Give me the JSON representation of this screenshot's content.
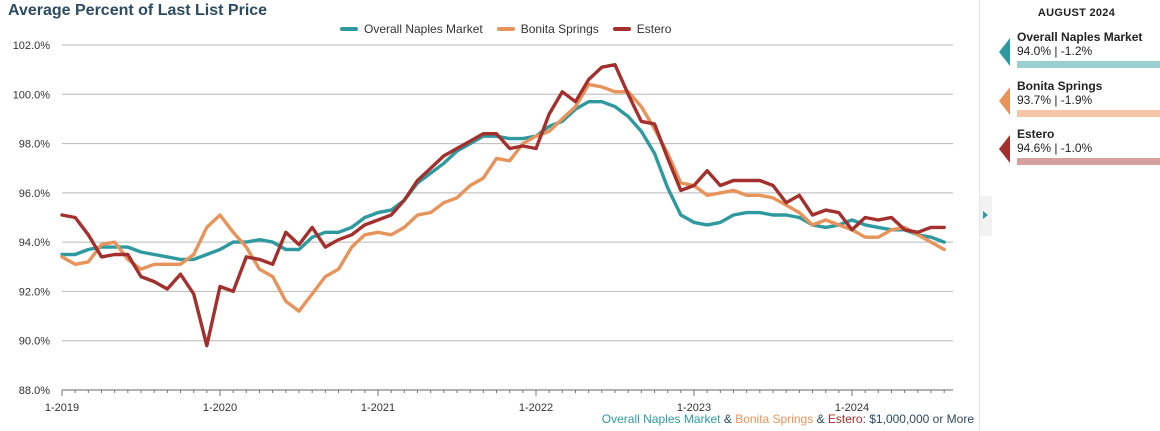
{
  "title": "Average Percent of Last List Price",
  "legend": [
    {
      "name": "Overall Naples Market",
      "color": "#2e9aa0"
    },
    {
      "name": "Bonita Springs",
      "color": "#e8935a"
    },
    {
      "name": "Estero",
      "color": "#a3302d"
    }
  ],
  "footnote": {
    "part1": "Overall Naples Market",
    "sep1": " & ",
    "part2": "Bonita Springs",
    "sep2": " & ",
    "part3": "Estero",
    "suffix": ": $1,000,000 or More"
  },
  "sidebar": {
    "month": "AUGUST 2024",
    "cards": [
      {
        "name": "Overall Naples Market",
        "value": "94.0% | -1.2%",
        "color": "#2e9aa0",
        "bar_color": "#9bcfd2"
      },
      {
        "name": "Bonita Springs",
        "value": "93.7% | -1.9%",
        "color": "#e8935a",
        "bar_color": "#f4c6a8"
      },
      {
        "name": "Estero",
        "value": "94.6% | -1.0%",
        "color": "#a3302d",
        "bar_color": "#d4a19f"
      }
    ]
  },
  "chart_data": {
    "type": "line",
    "start": "2019-01",
    "x_tick_labels": [
      "1-2019",
      "1-2020",
      "1-2021",
      "1-2022",
      "1-2023",
      "1-2024"
    ],
    "y_tick_labels": [
      "88.0%",
      "90.0%",
      "92.0%",
      "94.0%",
      "96.0%",
      "98.0%",
      "100.0%",
      "102.0%"
    ],
    "ylim": [
      88,
      102
    ],
    "grid": true,
    "legend_position": "top-center",
    "series": [
      {
        "name": "Overall Naples Market",
        "color": "#2e9aa0",
        "values": [
          93.5,
          93.5,
          93.7,
          93.8,
          93.8,
          93.8,
          93.6,
          93.5,
          93.4,
          93.3,
          93.3,
          93.5,
          93.7,
          94.0,
          94.0,
          94.1,
          94.0,
          93.7,
          93.7,
          94.2,
          94.4,
          94.4,
          94.6,
          95.0,
          95.2,
          95.3,
          95.7,
          96.4,
          96.8,
          97.2,
          97.7,
          98.0,
          98.3,
          98.3,
          98.2,
          98.2,
          98.3,
          98.7,
          98.9,
          99.4,
          99.7,
          99.7,
          99.5,
          99.1,
          98.5,
          97.6,
          96.2,
          95.1,
          94.8,
          94.7,
          94.8,
          95.1,
          95.2,
          95.2,
          95.1,
          95.1,
          95.0,
          94.7,
          94.6,
          94.7,
          94.9,
          94.7,
          94.6,
          94.5,
          94.5,
          94.3,
          94.2,
          94.0
        ]
      },
      {
        "name": "Bonita Springs",
        "color": "#e8935a",
        "values": [
          93.4,
          93.1,
          93.2,
          93.9,
          94.0,
          93.3,
          92.9,
          93.1,
          93.1,
          93.1,
          93.5,
          94.6,
          95.1,
          94.4,
          93.8,
          92.9,
          92.6,
          91.6,
          91.2,
          91.9,
          92.6,
          92.9,
          93.8,
          94.3,
          94.4,
          94.3,
          94.6,
          95.1,
          95.2,
          95.6,
          95.8,
          96.3,
          96.6,
          97.4,
          97.3,
          98.0,
          98.3,
          98.5,
          99.0,
          99.5,
          100.4,
          100.3,
          100.1,
          100.1,
          99.5,
          98.6,
          97.6,
          96.4,
          96.3,
          95.9,
          96.0,
          96.1,
          95.9,
          95.9,
          95.8,
          95.5,
          95.2,
          94.7,
          94.9,
          94.7,
          94.5,
          94.2,
          94.2,
          94.5,
          94.6,
          94.3,
          94.0,
          93.7
        ]
      },
      {
        "name": "Estero",
        "color": "#a3302d",
        "values": [
          95.1,
          95.0,
          94.3,
          93.4,
          93.5,
          93.5,
          92.6,
          92.4,
          92.1,
          92.7,
          91.9,
          89.8,
          92.2,
          92.0,
          93.4,
          93.3,
          93.1,
          94.4,
          93.9,
          94.6,
          93.8,
          94.1,
          94.3,
          94.7,
          94.9,
          95.1,
          95.7,
          96.5,
          97.0,
          97.5,
          97.8,
          98.1,
          98.4,
          98.4,
          97.8,
          97.9,
          97.8,
          99.2,
          100.1,
          99.7,
          100.6,
          101.1,
          101.2,
          100.0,
          98.9,
          98.8,
          97.4,
          96.1,
          96.3,
          96.9,
          96.3,
          96.5,
          96.5,
          96.5,
          96.3,
          95.6,
          95.9,
          95.1,
          95.3,
          95.2,
          94.5,
          95.0,
          94.9,
          95.0,
          94.5,
          94.4,
          94.6,
          94.6
        ]
      }
    ]
  }
}
